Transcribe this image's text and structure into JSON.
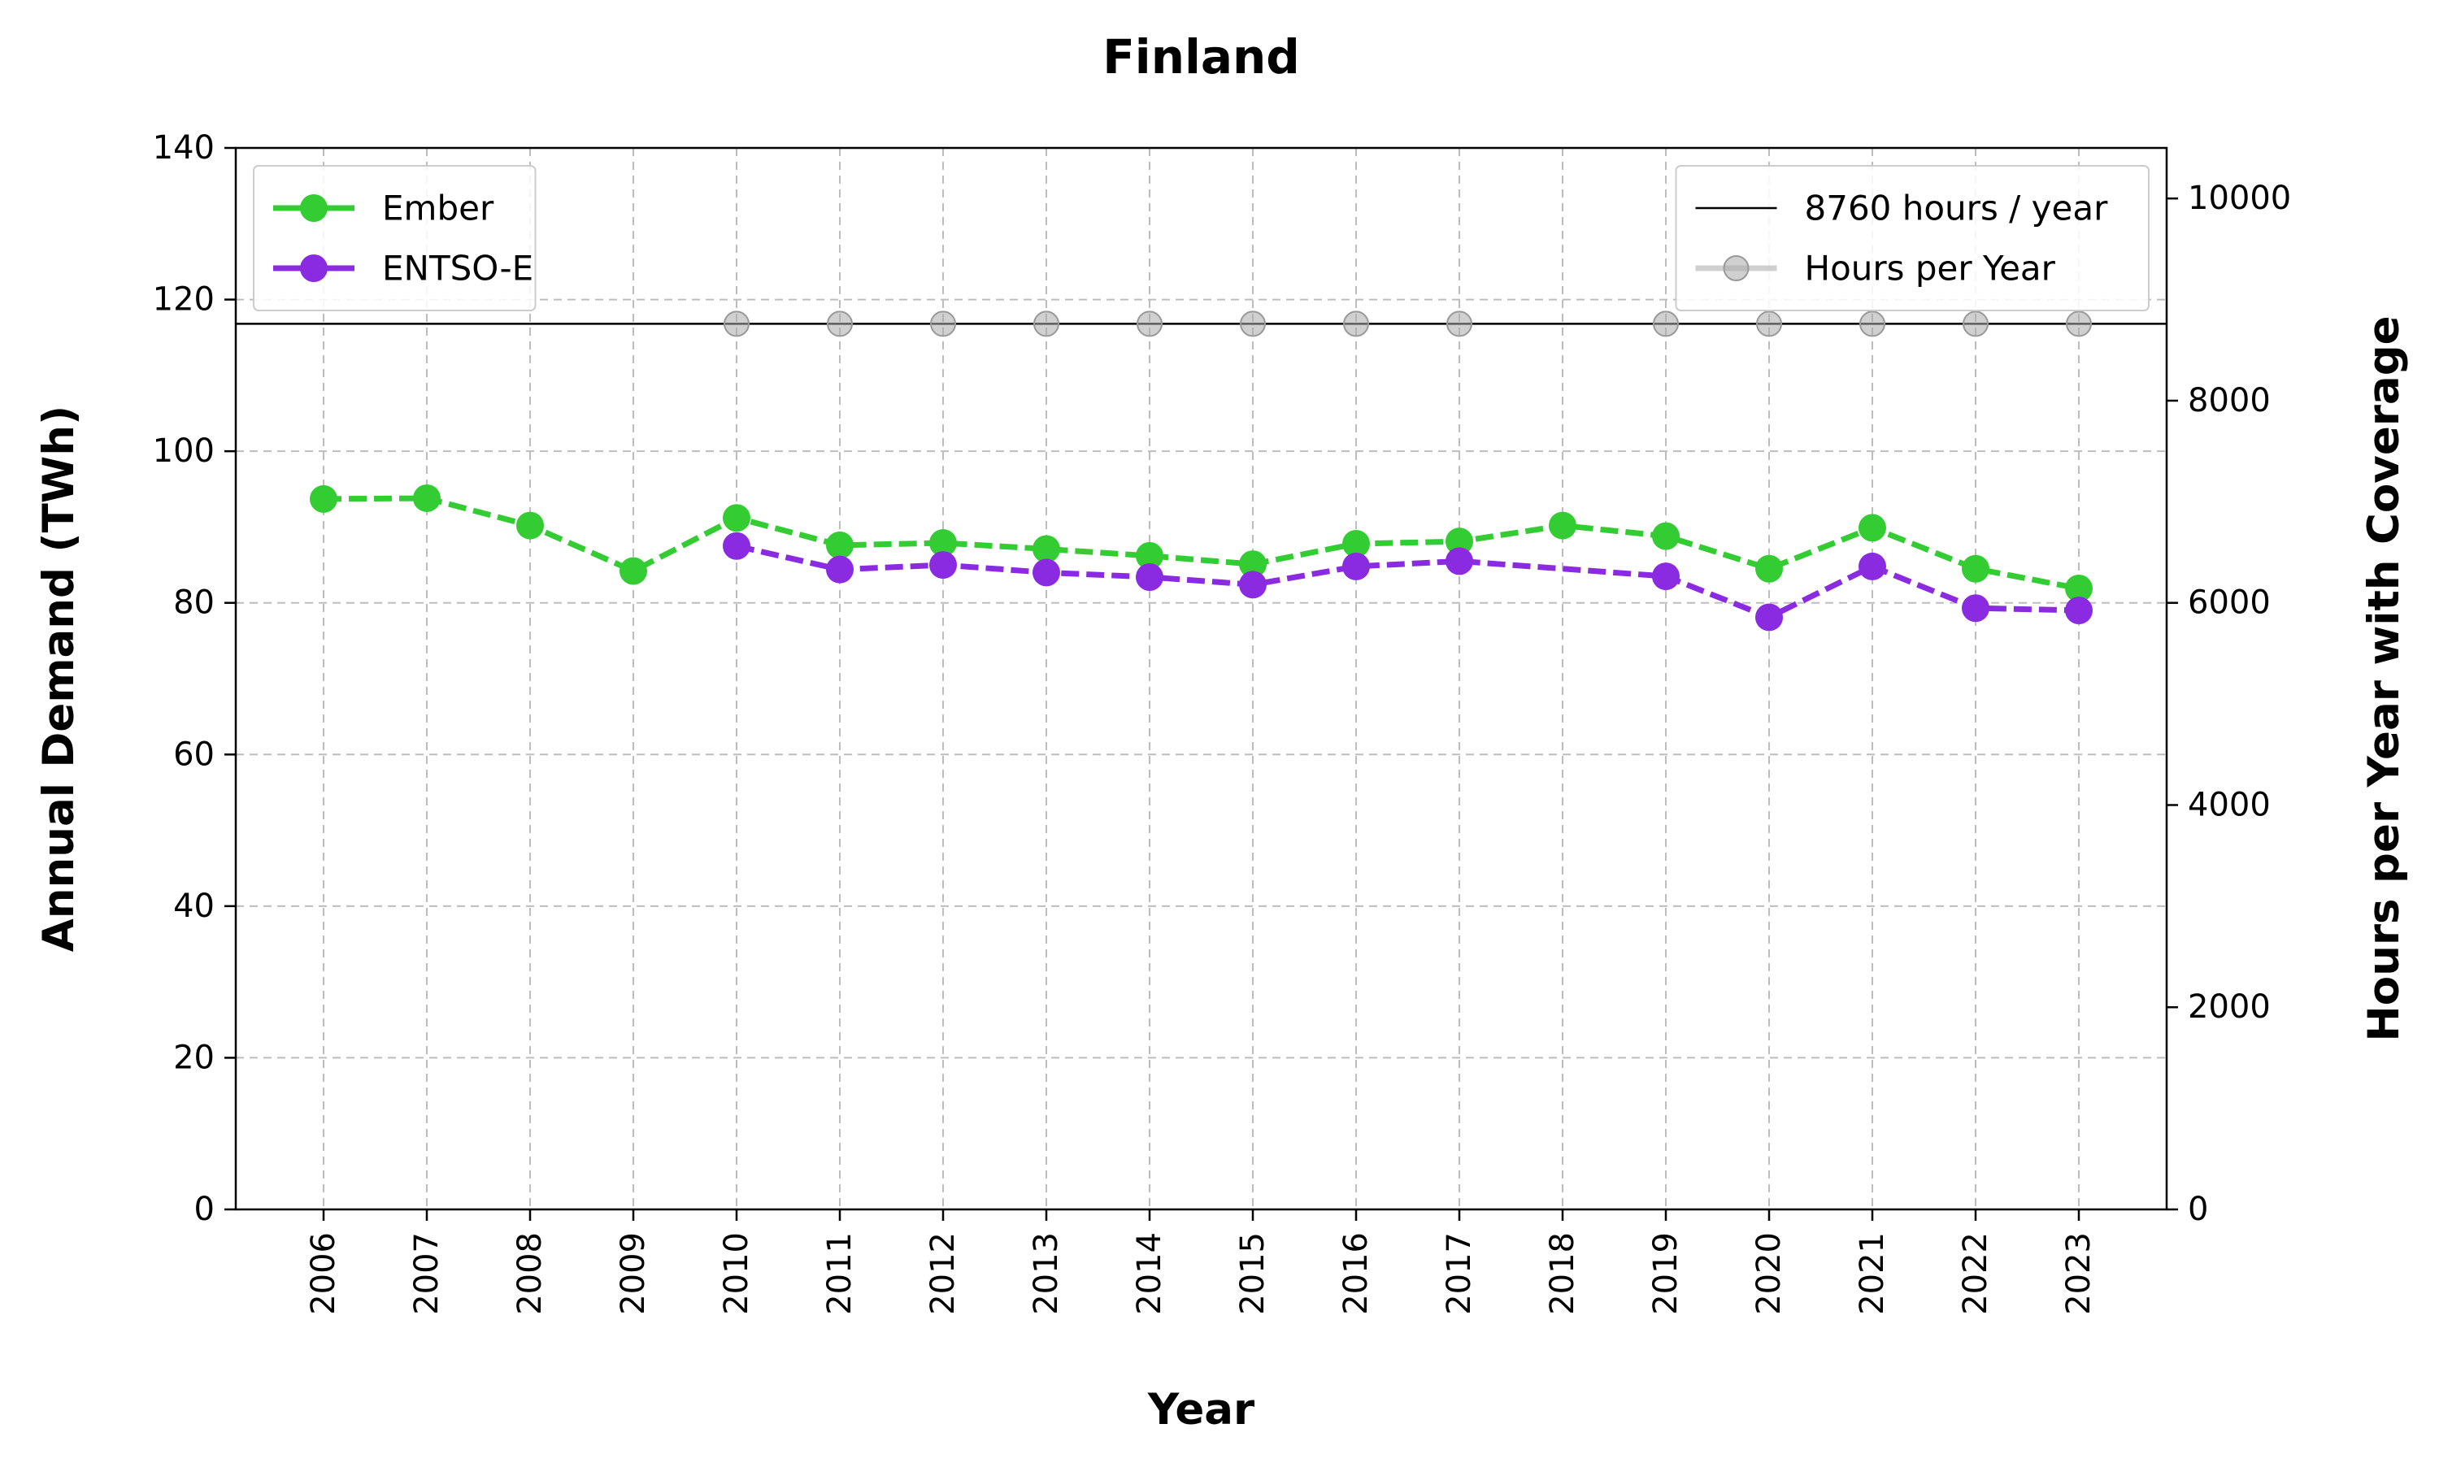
{
  "chart_data": {
    "type": "line",
    "title": "Finland",
    "xlabel": "Year",
    "ylabel": "Annual Demand (TWh)",
    "ylabel_right": "Hours per Year with Coverage",
    "x": [
      2006,
      2007,
      2008,
      2009,
      2010,
      2011,
      2012,
      2013,
      2014,
      2015,
      2016,
      2017,
      2018,
      2019,
      2020,
      2021,
      2022,
      2023
    ],
    "ylim": [
      0,
      140
    ],
    "ylim_right": [
      0,
      10500
    ],
    "yticks": [
      0,
      20,
      40,
      60,
      80,
      100,
      120,
      140
    ],
    "yticks_right": [
      0,
      2000,
      4000,
      6000,
      8000,
      10000
    ],
    "grid": true,
    "series": [
      {
        "name": "Ember",
        "axis": "left",
        "color": "#33cc33",
        "style": "dashed",
        "values": [
          93.7,
          93.8,
          90.2,
          84.2,
          91.2,
          87.6,
          87.9,
          87.1,
          86.2,
          85.1,
          87.8,
          88.1,
          90.2,
          88.8,
          84.5,
          89.9,
          84.5,
          81.9
        ]
      },
      {
        "name": "ENTSO-E",
        "axis": "left",
        "color": "#8a2be2",
        "style": "dashed",
        "values": [
          null,
          null,
          null,
          null,
          87.5,
          84.4,
          85.0,
          84.0,
          83.4,
          82.4,
          84.8,
          85.5,
          null,
          83.5,
          78.1,
          84.8,
          79.3,
          79.0
        ]
      },
      {
        "name": "Hours per Year",
        "axis": "right",
        "color": "#aaaaaa",
        "style": "solid",
        "values": [
          null,
          null,
          null,
          null,
          8760,
          8760,
          8760,
          8760,
          8760,
          8760,
          8760,
          8760,
          null,
          8760,
          8760,
          8760,
          8760,
          8760
        ]
      }
    ],
    "reference_line": {
      "name": "8760 hours / year",
      "axis": "right",
      "value": 8760,
      "color": "#000000"
    },
    "legend_left": {
      "placement": "top-left",
      "entries": [
        "Ember",
        "ENTSO-E"
      ]
    },
    "legend_right": {
      "placement": "top-right",
      "entries": [
        "8760 hours / year",
        "Hours per Year"
      ]
    }
  }
}
